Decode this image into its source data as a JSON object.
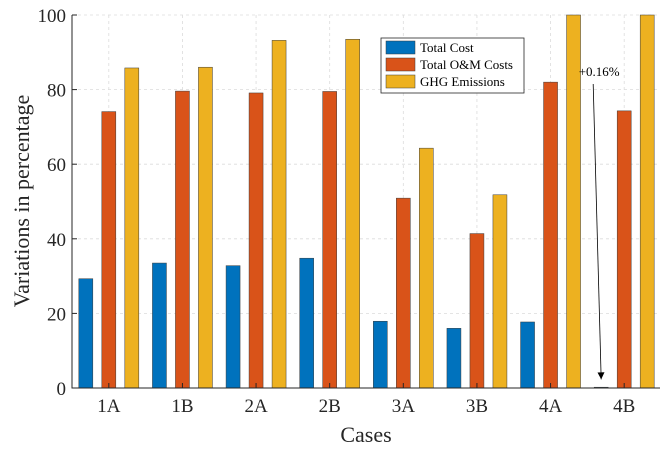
{
  "chart_data": {
    "type": "bar",
    "title": "",
    "xlabel": "Cases",
    "ylabel": "Variations in percentage",
    "ylim": [
      0,
      100
    ],
    "yticks": [
      0,
      20,
      40,
      60,
      80,
      100
    ],
    "grid": true,
    "legend_position": "top-center",
    "categories": [
      "1A",
      "1B",
      "2A",
      "2B",
      "3A",
      "3B",
      "4A",
      "4B"
    ],
    "series": [
      {
        "name": "Total Cost",
        "color": "#0072BD",
        "values": [
          29.3,
          33.5,
          32.8,
          34.8,
          17.9,
          16.0,
          17.7,
          0.16
        ]
      },
      {
        "name": "Total O&M Costs",
        "color": "#D95319",
        "values": [
          74.1,
          79.6,
          79.1,
          79.5,
          50.9,
          41.4,
          82.0,
          74.3
        ]
      },
      {
        "name": "GHG Emissions",
        "color": "#EDB120",
        "values": [
          85.8,
          86.0,
          93.2,
          93.5,
          64.3,
          51.8,
          100,
          100
        ]
      }
    ],
    "annotations": [
      {
        "text": "+0.16%",
        "category": "4B",
        "series": "Total Cost"
      }
    ]
  }
}
